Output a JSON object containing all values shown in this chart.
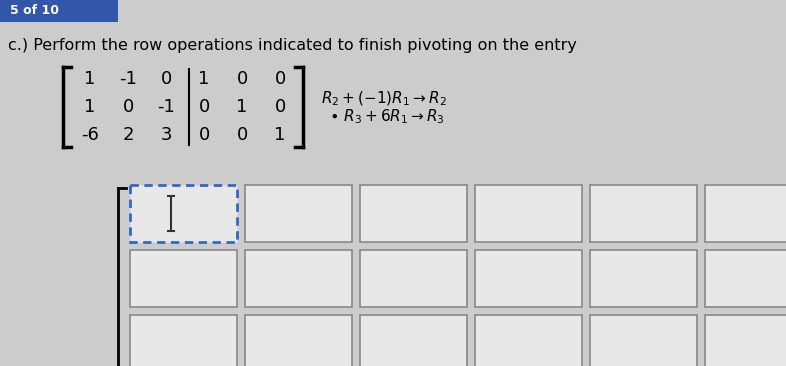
{
  "title_text": "c.) Perform the row operations indicated to finish pivoting on the entry",
  "header_bar_color": "#3355aa",
  "background_color": "#cccccc",
  "matrix_rows": [
    [
      "1",
      "-1",
      "0",
      "1",
      "0",
      "0"
    ],
    [
      "1",
      "0",
      "-1",
      "0",
      "1",
      "0"
    ],
    [
      "-6",
      "2",
      "3",
      "0",
      "0",
      "1"
    ]
  ],
  "active_box_border": "#3366cc",
  "normal_box_border": "#888888",
  "box_face": "#e8e8e8",
  "cursor_color": "#333333"
}
